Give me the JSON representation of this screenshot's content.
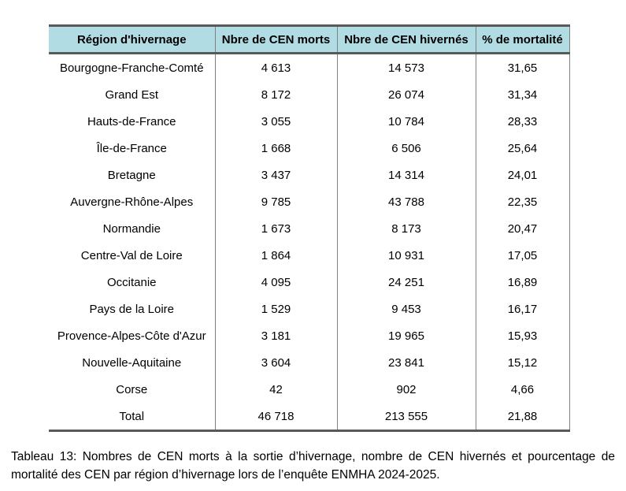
{
  "table": {
    "headers": [
      "Région d'hivernage",
      "Nbre de CEN morts",
      "Nbre de CEN hivernés",
      "% de mortalité"
    ],
    "rows": [
      [
        "Bourgogne-Franche-Comté",
        "4 613",
        "14 573",
        "31,65"
      ],
      [
        "Grand Est",
        "8 172",
        "26 074",
        "31,34"
      ],
      [
        "Hauts-de-France",
        "3 055",
        "10 784",
        "28,33"
      ],
      [
        "Île-de-France",
        "1 668",
        "6 506",
        "25,64"
      ],
      [
        "Bretagne",
        "3 437",
        "14 314",
        "24,01"
      ],
      [
        "Auvergne-Rhône-Alpes",
        "9 785",
        "43 788",
        "22,35"
      ],
      [
        "Normandie",
        "1 673",
        "8 173",
        "20,47"
      ],
      [
        "Centre-Val de Loire",
        "1 864",
        "10 931",
        "17,05"
      ],
      [
        "Occitanie",
        "4 095",
        "24 251",
        "16,89"
      ],
      [
        "Pays de la Loire",
        "1 529",
        "9 453",
        "16,17"
      ],
      [
        "Provence-Alpes-Côte d'Azur",
        "3 181",
        "19 965",
        "15,93"
      ],
      [
        "Nouvelle-Aquitaine",
        "3 604",
        "23 841",
        "15,12"
      ],
      [
        "Corse",
        "42",
        "902",
        "4,66"
      ],
      [
        "Total",
        "46 718",
        "213 555",
        "21,88"
      ]
    ]
  },
  "caption": "Tableau 13: Nombres de CEN morts à la sortie d’hivernage, nombre de CEN hivernés et pourcentage de mortalité des CEN par région d’hivernage lors de l’enquête ENMHA 2024-2025.",
  "colors": {
    "header_bg": "#b2dce4",
    "border_dark": "#595959",
    "border_gray": "#7f7f7f"
  }
}
